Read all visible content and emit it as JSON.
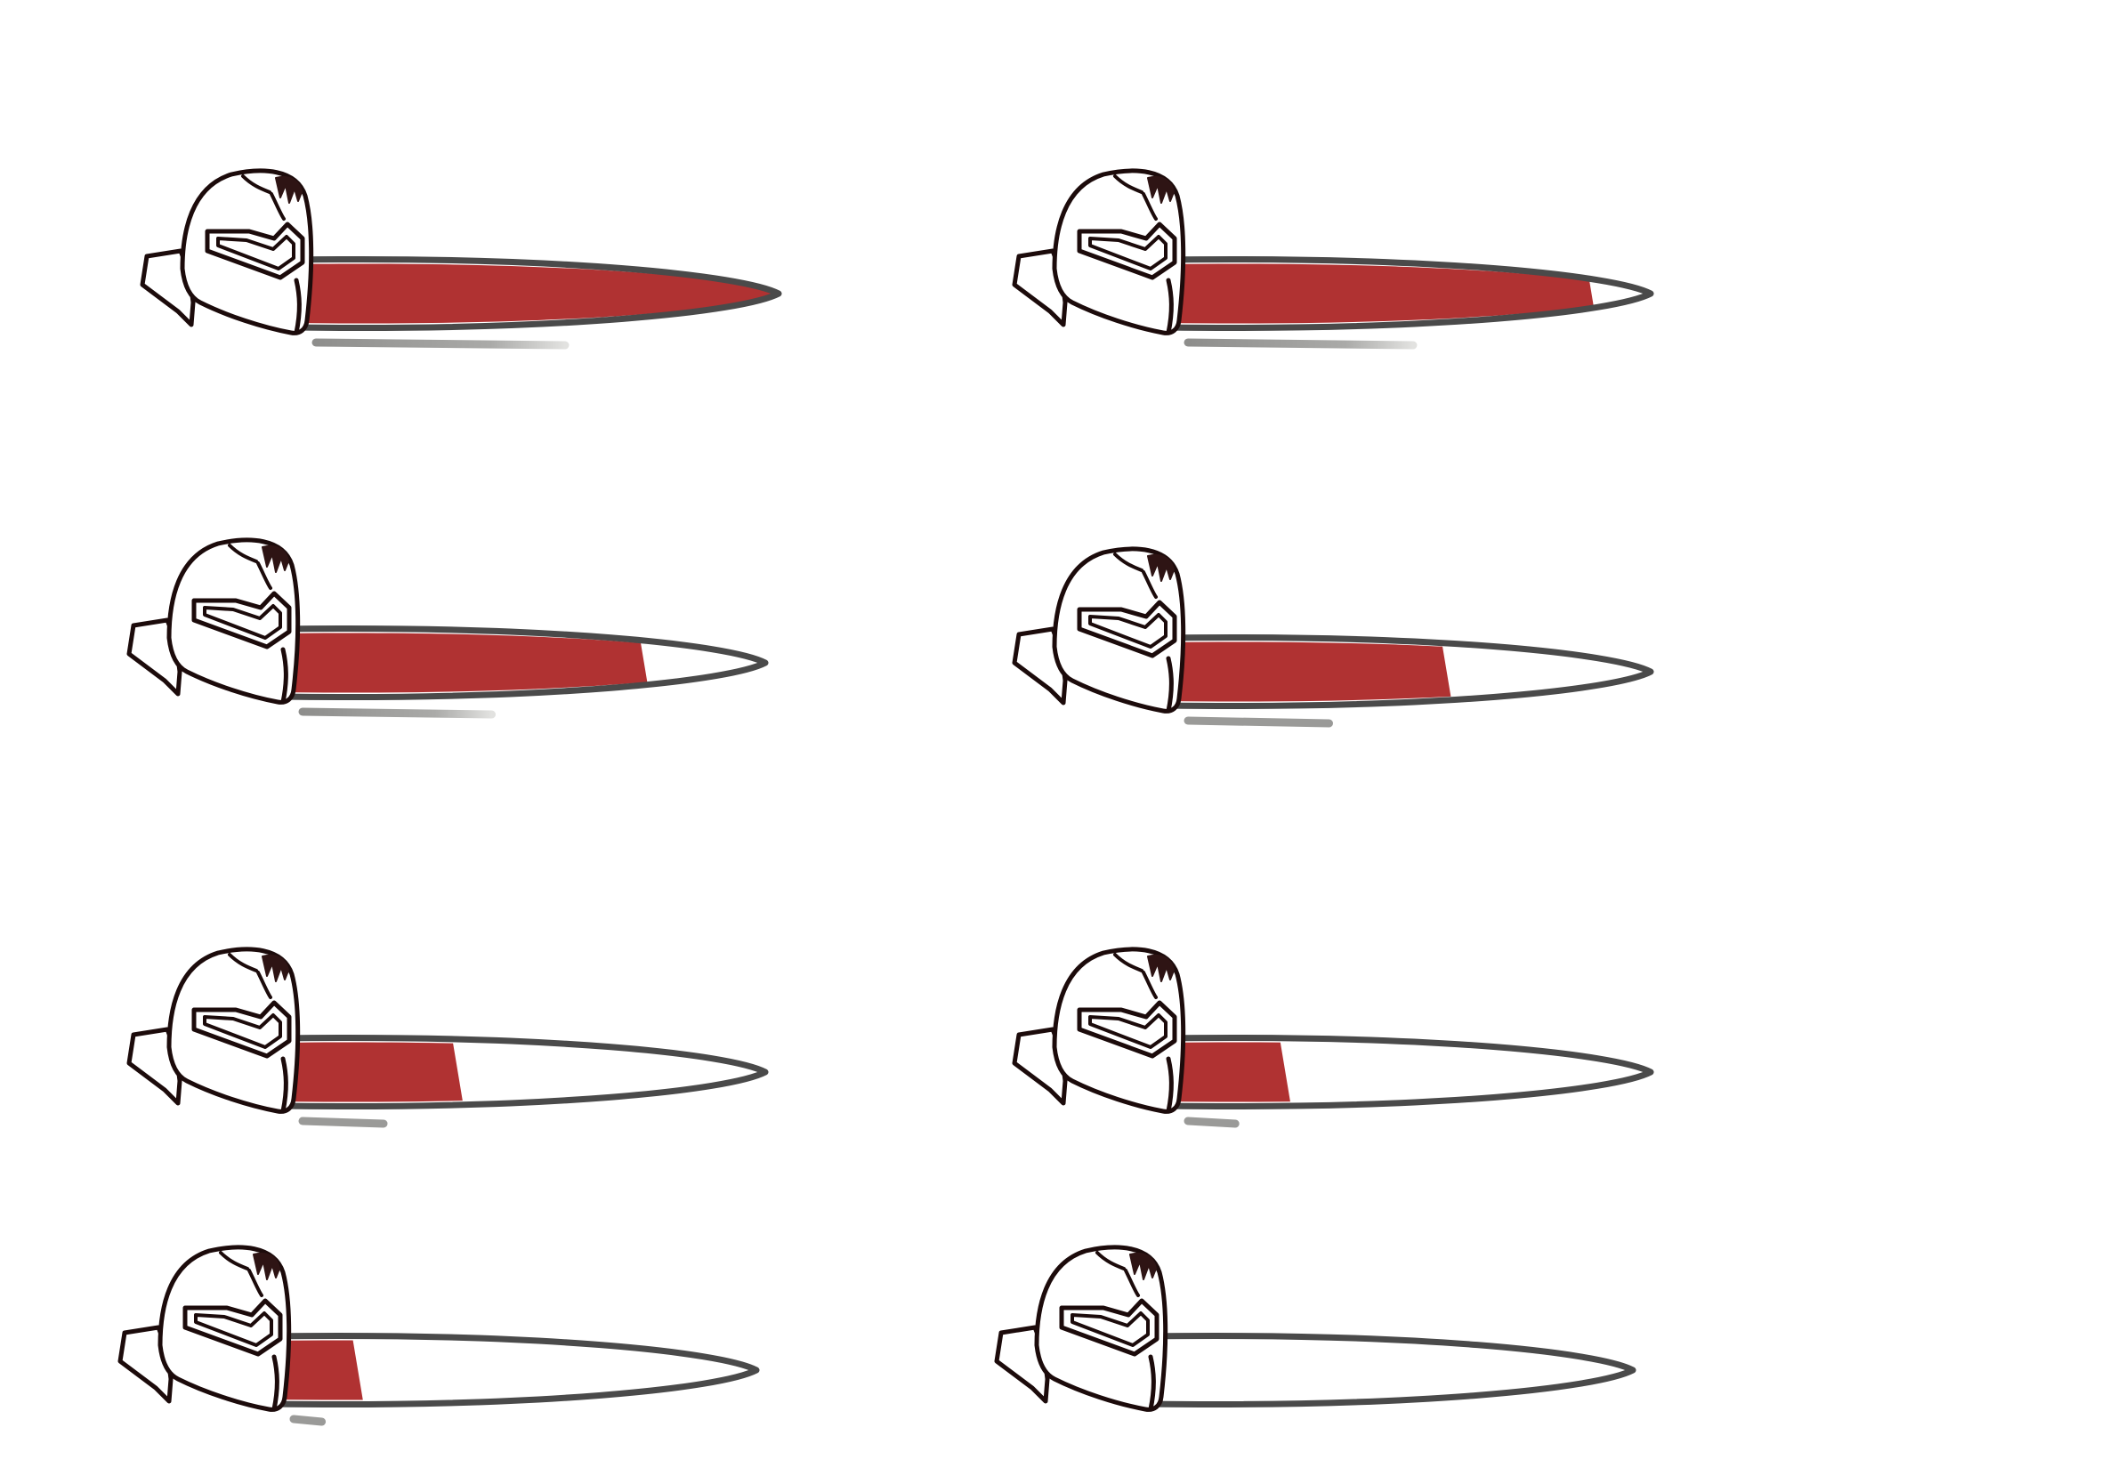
{
  "sheet": {
    "title": "",
    "colors": {
      "fill": "#b03232",
      "frame": "#4a4a4a",
      "track": "#ffffff",
      "shadow": "#9a9a98",
      "helmet_stroke": "#1c0b0b",
      "helmet_fill": "#ffffff",
      "crack": "#2e1414"
    },
    "icon": "knight-helmet-icon",
    "bars": [
      {
        "id": "health-bar-100",
        "fill": 1.0
      },
      {
        "id": "health-bar-90",
        "fill": 0.9
      },
      {
        "id": "health-bar-75",
        "fill": 0.75
      },
      {
        "id": "health-bar-55",
        "fill": 0.55
      },
      {
        "id": "health-bar-30",
        "fill": 0.3
      },
      {
        "id": "health-bar-16",
        "fill": 0.16
      },
      {
        "id": "health-bar-8",
        "fill": 0.08
      },
      {
        "id": "health-bar-0",
        "fill": 0.0
      }
    ]
  }
}
